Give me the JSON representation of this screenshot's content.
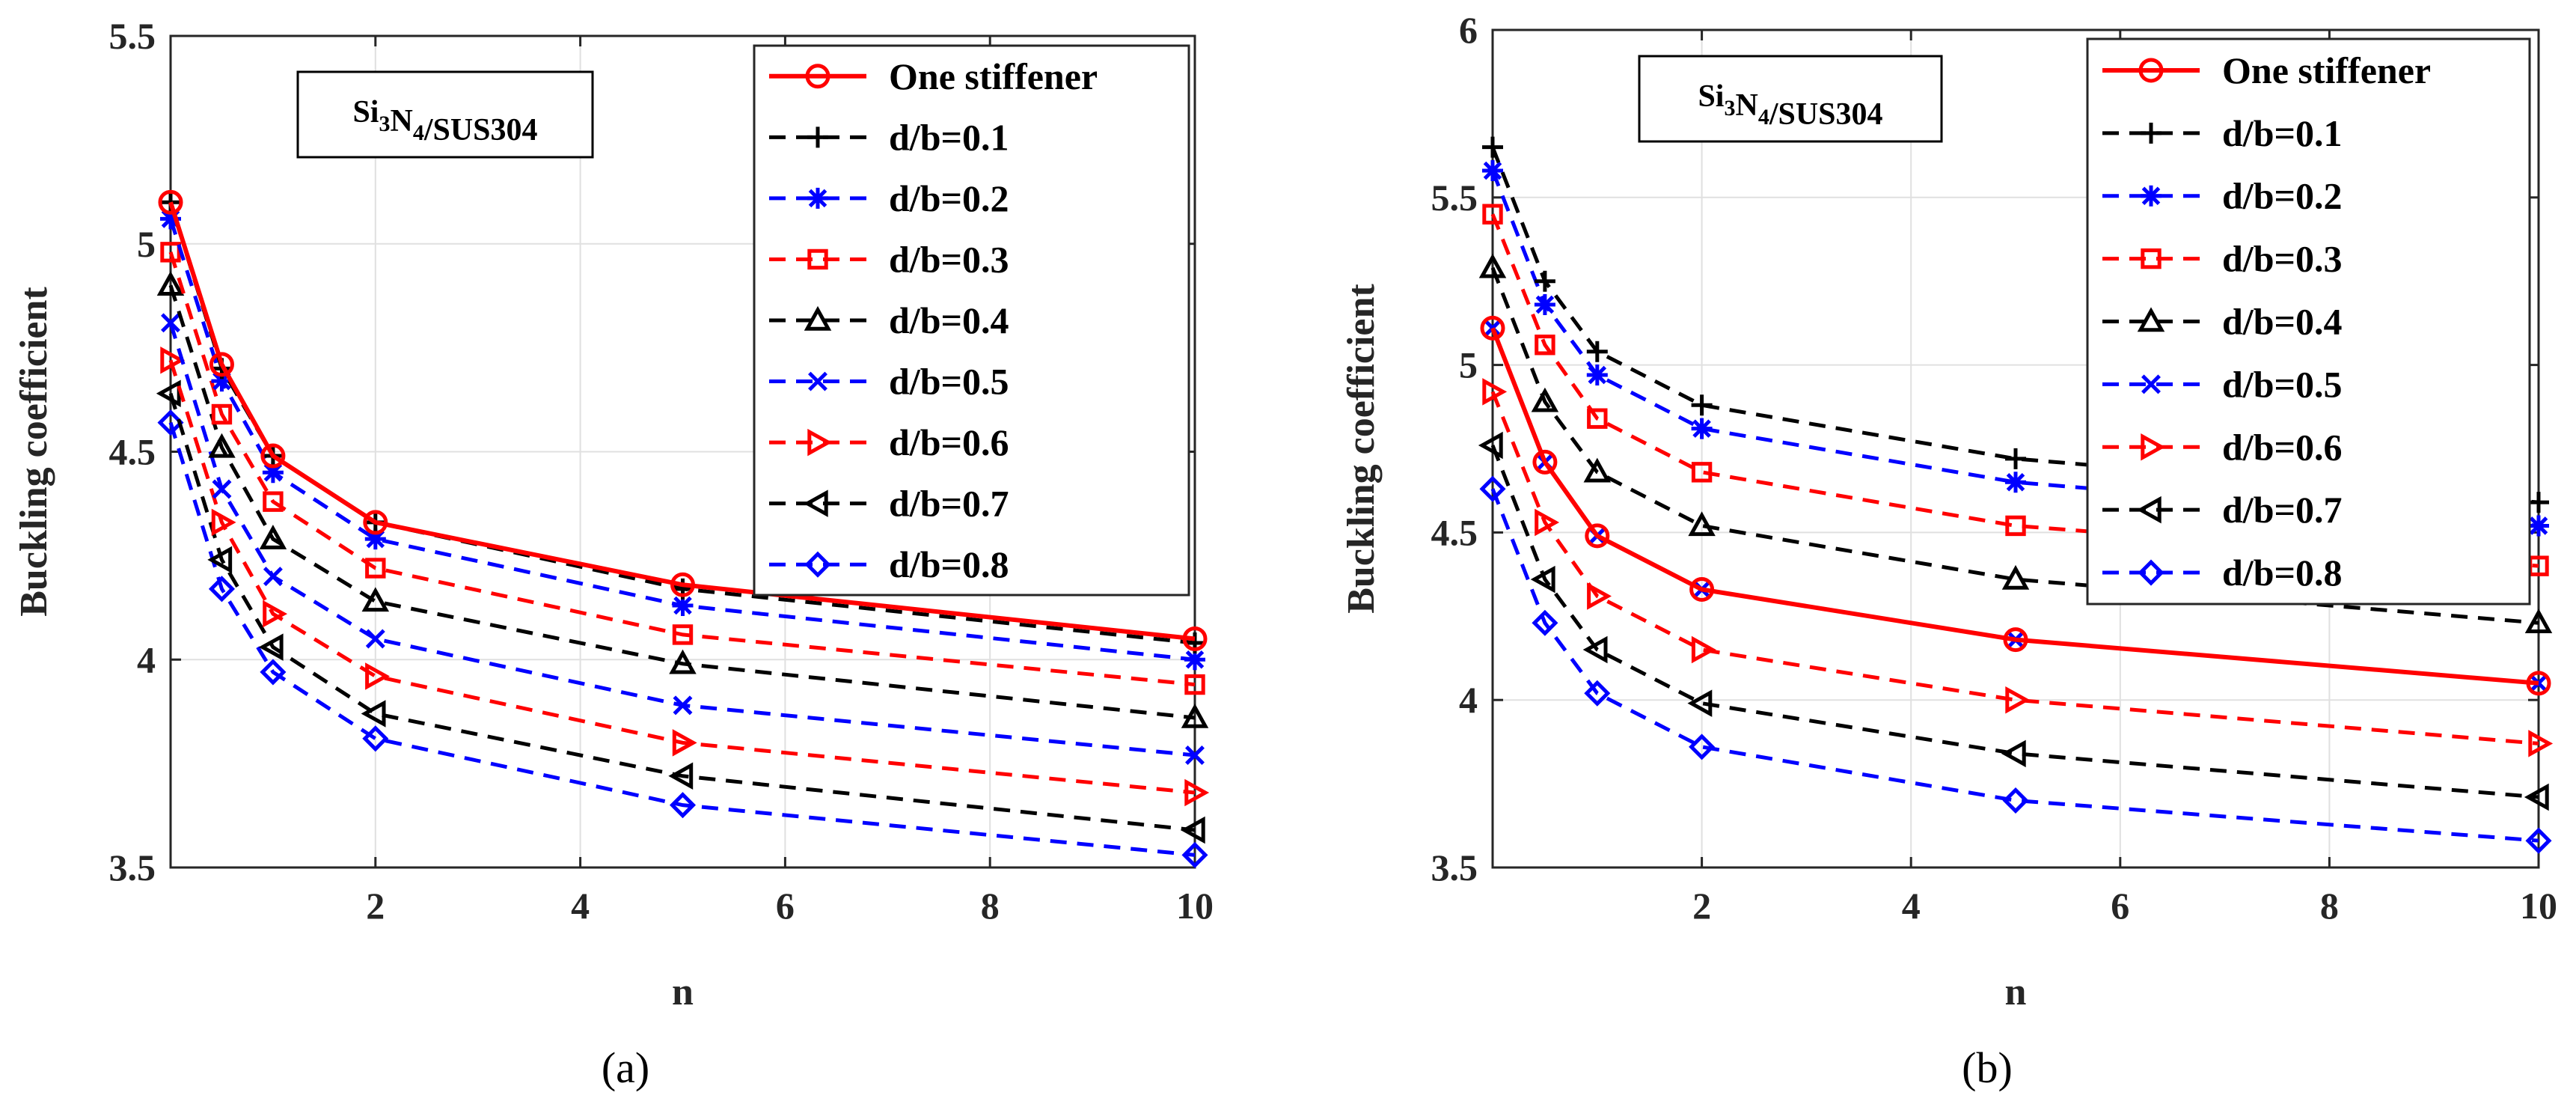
{
  "chart_data": [
    {
      "type": "line",
      "panel_label": "(a)",
      "annotation": {
        "prefix": "Si",
        "sub1": "3",
        "mid": "N",
        "sub2": "4",
        "suffix": "/SUS304"
      },
      "xlabel": "n",
      "ylabel": "Buckling coefficient",
      "xlim": [
        0,
        10
      ],
      "ylim": [
        3.5,
        5.5
      ],
      "xticks": [
        2,
        4,
        6,
        8,
        10
      ],
      "yticks": [
        3.5,
        4,
        4.5,
        5,
        5.5
      ],
      "ytick_labels": [
        "3.5",
        "4",
        "4.5",
        "5",
        "5.5"
      ],
      "x": [
        0,
        0.5,
        1,
        2,
        5,
        10
      ],
      "legend_position": "top-right",
      "grid": true,
      "series": [
        {
          "name": "One stiffener",
          "color": "#ff0000",
          "marker": "circle",
          "dash": "solid",
          "values": [
            5.1,
            4.71,
            4.49,
            4.33,
            4.18,
            4.05
          ]
        },
        {
          "name": "d/b=0.1",
          "color": "#000000",
          "marker": "plus",
          "dash": "dashed",
          "values": [
            5.1,
            4.7,
            4.49,
            4.33,
            4.17,
            4.04
          ]
        },
        {
          "name": "d/b=0.2",
          "color": "#0000ff",
          "marker": "asterisk",
          "dash": "dashed",
          "values": [
            5.06,
            4.67,
            4.45,
            4.29,
            4.13,
            4.0
          ]
        },
        {
          "name": "d/b=0.3",
          "color": "#ff0000",
          "marker": "square",
          "dash": "dashed",
          "values": [
            4.98,
            4.59,
            4.38,
            4.22,
            4.06,
            3.94
          ]
        },
        {
          "name": "d/b=0.4",
          "color": "#000000",
          "marker": "triangle-up",
          "dash": "dashed",
          "values": [
            4.9,
            4.51,
            4.29,
            4.14,
            3.99,
            3.86
          ]
        },
        {
          "name": "d/b=0.5",
          "color": "#0000ff",
          "marker": "x",
          "dash": "dashed",
          "values": [
            4.81,
            4.41,
            4.2,
            4.05,
            3.89,
            3.77
          ]
        },
        {
          "name": "d/b=0.6",
          "color": "#ff0000",
          "marker": "triangle-right",
          "dash": "dashed",
          "values": [
            4.72,
            4.33,
            4.11,
            3.96,
            3.8,
            3.68
          ]
        },
        {
          "name": "d/b=0.7",
          "color": "#000000",
          "marker": "triangle-left",
          "dash": "dashed",
          "values": [
            4.64,
            4.24,
            4.03,
            3.87,
            3.72,
            3.59
          ]
        },
        {
          "name": "d/b=0.8",
          "color": "#0000ff",
          "marker": "diamond",
          "dash": "dashed",
          "values": [
            4.57,
            4.17,
            3.97,
            3.81,
            3.65,
            3.53
          ]
        }
      ]
    },
    {
      "type": "line",
      "panel_label": "(b)",
      "annotation": {
        "prefix": "Si",
        "sub1": "3",
        "mid": "N",
        "sub2": "4",
        "suffix": "/SUS304"
      },
      "xlabel": "n",
      "ylabel": "Buckling coefficient",
      "xlim": [
        0,
        10
      ],
      "ylim": [
        3.5,
        6
      ],
      "xticks": [
        2,
        4,
        6,
        8,
        10
      ],
      "yticks": [
        3.5,
        4,
        4.5,
        5,
        5.5,
        6
      ],
      "ytick_labels": [
        "3.5",
        "4",
        "4.5",
        "5",
        "5.5",
        "6"
      ],
      "x": [
        0,
        0.5,
        1,
        2,
        5,
        10
      ],
      "legend_position": "top-right",
      "grid": true,
      "series": [
        {
          "name": "One stiffener",
          "color": "#ff0000",
          "marker": "circle",
          "dash": "solid",
          "values": [
            5.11,
            4.71,
            4.49,
            4.33,
            4.18,
            4.05
          ]
        },
        {
          "name": "d/b=0.1",
          "color": "#000000",
          "marker": "plus",
          "dash": "dashed",
          "values": [
            5.65,
            5.25,
            5.04,
            4.88,
            4.72,
            4.59
          ]
        },
        {
          "name": "d/b=0.2",
          "color": "#0000ff",
          "marker": "asterisk",
          "dash": "dashed",
          "values": [
            5.58,
            5.18,
            4.97,
            4.81,
            4.65,
            4.52
          ]
        },
        {
          "name": "d/b=0.3",
          "color": "#ff0000",
          "marker": "square",
          "dash": "dashed",
          "values": [
            5.45,
            5.06,
            4.84,
            4.68,
            4.52,
            4.4
          ]
        },
        {
          "name": "d/b=0.4",
          "color": "#000000",
          "marker": "triangle-up",
          "dash": "dashed",
          "values": [
            5.29,
            4.89,
            4.68,
            4.52,
            4.36,
            4.23
          ]
        },
        {
          "name": "d/b=0.5",
          "color": "#0000ff",
          "marker": "x",
          "dash": "dashed",
          "values": [
            5.11,
            4.71,
            4.49,
            4.33,
            4.18,
            4.05
          ]
        },
        {
          "name": "d/b=0.6",
          "color": "#ff0000",
          "marker": "triangle-right",
          "dash": "dashed",
          "values": [
            4.92,
            4.53,
            4.31,
            4.15,
            4.0,
            3.87
          ]
        },
        {
          "name": "d/b=0.7",
          "color": "#000000",
          "marker": "triangle-left",
          "dash": "dashed",
          "values": [
            4.76,
            4.36,
            4.15,
            3.99,
            3.84,
            3.71
          ]
        },
        {
          "name": "d/b=0.8",
          "color": "#0000ff",
          "marker": "diamond",
          "dash": "dashed",
          "values": [
            4.63,
            4.23,
            4.02,
            3.86,
            3.7,
            3.58
          ]
        }
      ]
    }
  ]
}
